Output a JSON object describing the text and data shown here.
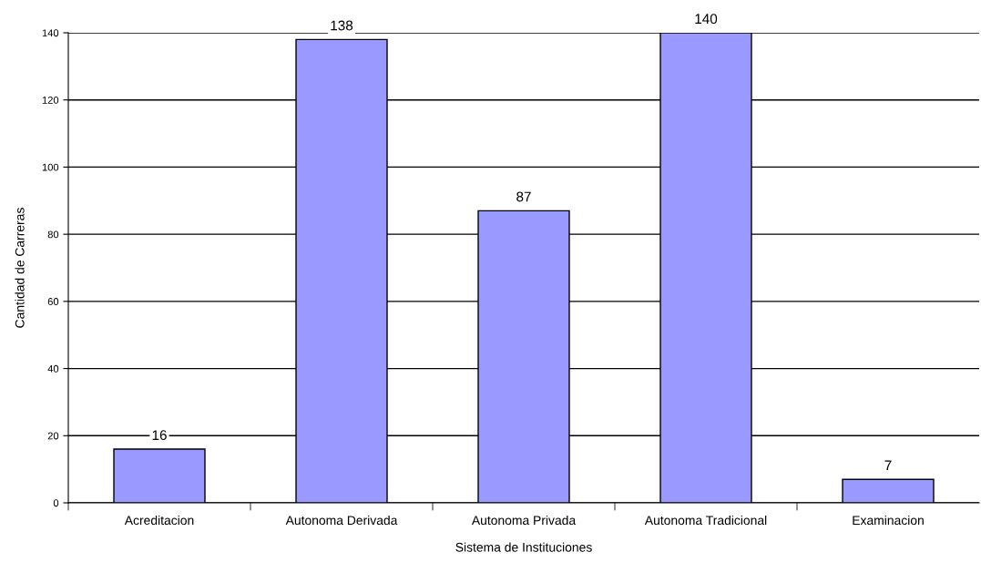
{
  "chart_data": {
    "type": "bar",
    "xlabel": "Sistema de Instituciones",
    "ylabel": "Cantidad de Carreras",
    "categories": [
      "Acreditacion",
      "Autonoma Derivada",
      "Autonoma Privada",
      "Autonoma Tradicional",
      "Examinacion"
    ],
    "values": [
      16,
      138,
      87,
      140,
      7
    ],
    "color": "#9999ff",
    "ylim": [
      0,
      140
    ],
    "yticks": [
      0,
      20,
      40,
      60,
      80,
      100,
      120,
      140
    ],
    "grid": "y",
    "data_labels": true
  }
}
